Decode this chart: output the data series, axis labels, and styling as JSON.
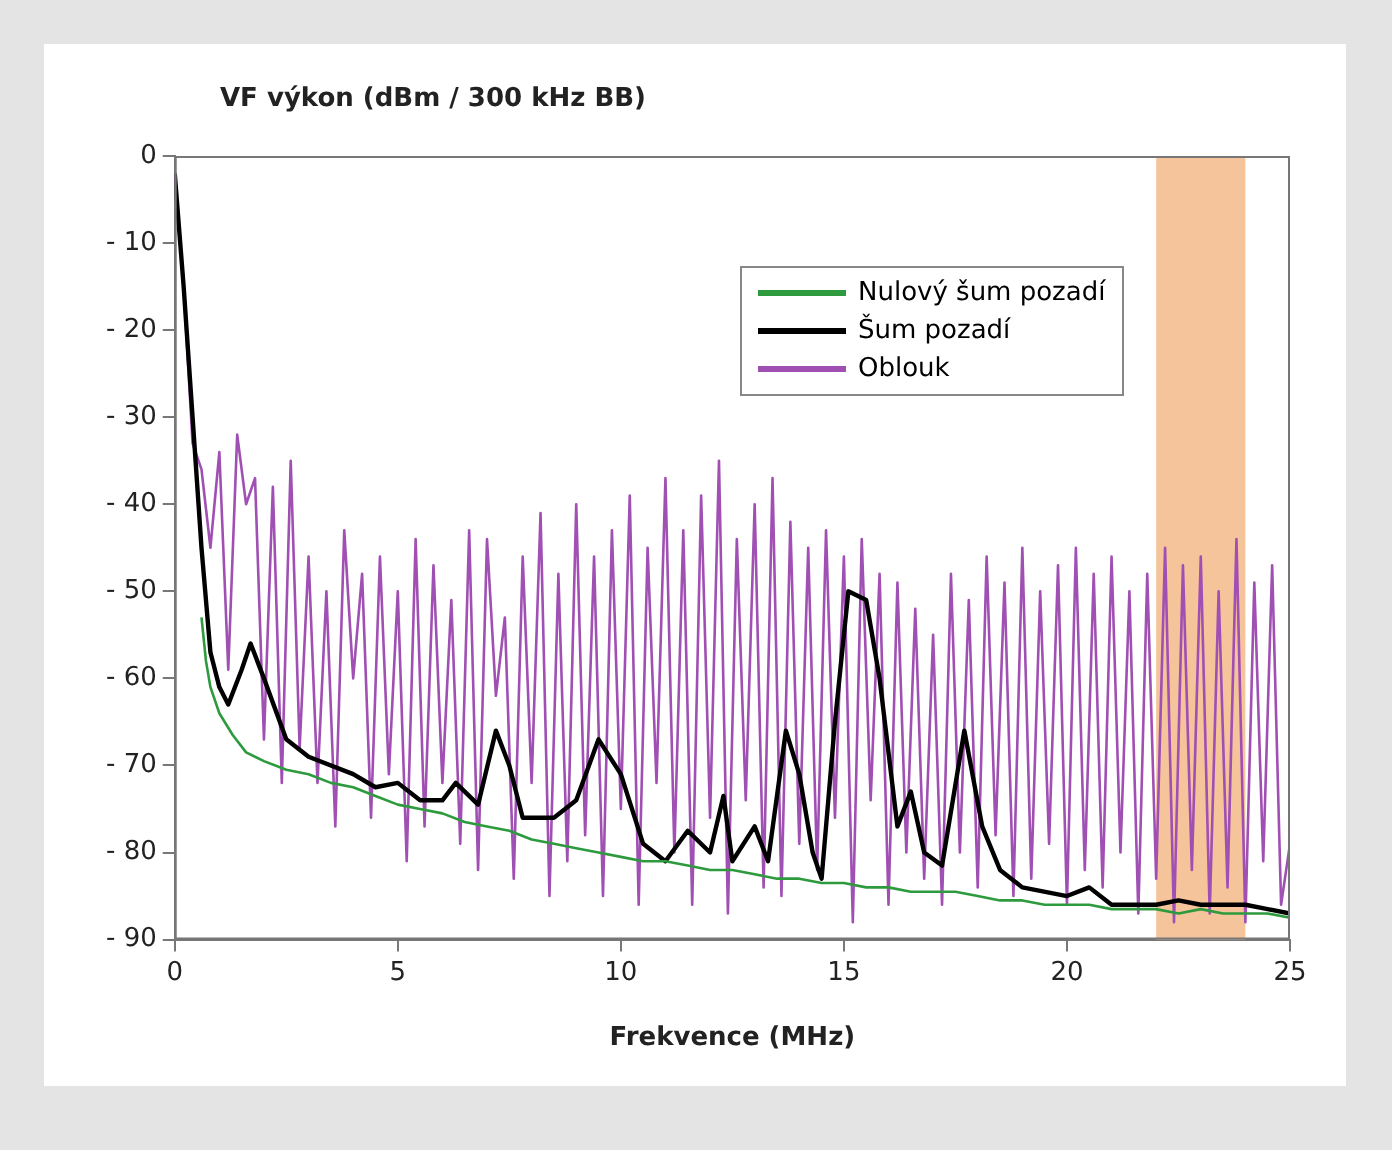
{
  "chart_data": {
    "type": "line",
    "ylabel": "VF výkon (dBm / 300 kHz BB)",
    "xlabel": "Frekvence (MHz)",
    "xlim": [
      0,
      25
    ],
    "xticks": [
      0,
      5,
      10,
      15,
      20,
      25
    ],
    "ylim": [
      -90,
      0
    ],
    "yticks": [
      {
        "value": -90,
        "label": "- 90"
      },
      {
        "value": -80,
        "label": "- 80"
      },
      {
        "value": -70,
        "label": "- 70"
      },
      {
        "value": -60,
        "label": "- 60"
      },
      {
        "value": -50,
        "label": "- 50"
      },
      {
        "value": -40,
        "label": "- 40"
      },
      {
        "value": -30,
        "label": "- 30"
      },
      {
        "value": -20,
        "label": "- 20"
      },
      {
        "value": -10,
        "label": "- 10"
      },
      0
    ],
    "grid": false,
    "legend": "top right",
    "marker": "none",
    "bands": [
      {
        "axis": "x",
        "from": 22,
        "to": 24,
        "color": "#f6c49a"
      }
    ],
    "series": [
      {
        "name": "Nulový šum pozadí",
        "color": "#2e9a3e",
        "x": [
          0.6,
          0.7,
          0.8,
          1,
          1.3,
          1.6,
          2,
          2.5,
          3,
          3.5,
          4,
          4.5,
          5,
          5.5,
          6,
          6.5,
          7,
          7.5,
          8,
          8.5,
          9,
          9.5,
          10,
          10.5,
          11,
          11.5,
          12,
          12.5,
          13,
          13.5,
          14,
          14.5,
          15,
          15.5,
          16,
          16.5,
          17,
          17.5,
          18,
          18.5,
          19,
          19.5,
          20,
          20.5,
          21,
          21.5,
          22,
          22.5,
          23,
          23.5,
          24,
          24.5,
          25
        ],
        "values": [
          -53,
          -58,
          -61,
          -64,
          -66.5,
          -68.5,
          -69.5,
          -70.5,
          -71,
          -72,
          -72.5,
          -73.5,
          -74.5,
          -75,
          -75.5,
          -76.5,
          -77,
          -77.5,
          -78.5,
          -79,
          -79.5,
          -80,
          -80.5,
          -81,
          -81,
          -81.5,
          -82,
          -82,
          -82.5,
          -83,
          -83,
          -83.5,
          -83.5,
          -84,
          -84,
          -84.5,
          -84.5,
          -84.5,
          -85,
          -85.5,
          -85.5,
          -86,
          -86,
          -86,
          -86.5,
          -86.5,
          -86.5,
          -87,
          -86.5,
          -87,
          -87,
          -87,
          -87.5
        ]
      },
      {
        "name": "Šum pozadí",
        "color": "#000000",
        "x": [
          0,
          0.2,
          0.4,
          0.6,
          0.8,
          1,
          1.2,
          1.5,
          1.7,
          2,
          2.5,
          3,
          4,
          4.5,
          5,
          5.5,
          6,
          6.3,
          6.8,
          7.2,
          7.5,
          7.8,
          8.5,
          9,
          9.5,
          10,
          10.5,
          11,
          11.5,
          12,
          12.3,
          12.5,
          13,
          13.3,
          13.7,
          14,
          14.3,
          14.5,
          14.8,
          15.1,
          15.5,
          15.8,
          16.2,
          16.5,
          16.8,
          17.2,
          17.7,
          18.1,
          18.5,
          19,
          20,
          20.5,
          21,
          22,
          22.5,
          23,
          24,
          24.5,
          25
        ],
        "values": [
          -2,
          -15,
          -30,
          -45,
          -57,
          -61,
          -63,
          -59,
          -56,
          -60,
          -67,
          -69,
          -71,
          -72.5,
          -72,
          -74,
          -74,
          -72,
          -74.5,
          -66,
          -70,
          -76,
          -76,
          -74,
          -67,
          -71,
          -79,
          -81,
          -77.5,
          -80,
          -73.5,
          -81,
          -77,
          -81,
          -66,
          -71,
          -80,
          -83,
          -65,
          -50,
          -51,
          -60,
          -77,
          -73,
          -80,
          -81.5,
          -66,
          -77,
          -82,
          -84,
          -85,
          -84,
          -86,
          -86,
          -85.5,
          -86,
          -86,
          -86.5,
          -87
        ]
      },
      {
        "name": "Oblouk",
        "color": "#a04fb3",
        "x": [
          0,
          0.2,
          0.4,
          0.6,
          0.8,
          1.0,
          1.2,
          1.4,
          1.6,
          1.8,
          2.0,
          2.2,
          2.4,
          2.6,
          2.8,
          3.0,
          3.2,
          3.4,
          3.6,
          3.8,
          4.0,
          4.2,
          4.4,
          4.6,
          4.8,
          5.0,
          5.2,
          5.4,
          5.6,
          5.8,
          6.0,
          6.2,
          6.4,
          6.6,
          6.8,
          7.0,
          7.2,
          7.4,
          7.6,
          7.8,
          8.0,
          8.2,
          8.4,
          8.6,
          8.8,
          9.0,
          9.2,
          9.4,
          9.6,
          9.8,
          10.0,
          10.2,
          10.4,
          10.6,
          10.8,
          11.0,
          11.2,
          11.4,
          11.6,
          11.8,
          12.0,
          12.2,
          12.4,
          12.6,
          12.8,
          13.0,
          13.2,
          13.4,
          13.6,
          13.8,
          14.0,
          14.2,
          14.4,
          14.6,
          14.8,
          15.0,
          15.2,
          15.4,
          15.6,
          15.8,
          16.0,
          16.2,
          16.4,
          16.6,
          16.8,
          17.0,
          17.2,
          17.4,
          17.6,
          17.8,
          18.0,
          18.2,
          18.4,
          18.6,
          18.8,
          19.0,
          19.2,
          19.4,
          19.6,
          19.8,
          20.0,
          20.2,
          20.4,
          20.6,
          20.8,
          21.0,
          21.2,
          21.4,
          21.6,
          21.8,
          22.0,
          22.2,
          22.4,
          22.6,
          22.8,
          23.0,
          23.2,
          23.4,
          23.6,
          23.8,
          24.0,
          24.2,
          24.4,
          24.6,
          24.8,
          25.0
        ],
        "values": [
          -2,
          -15,
          -33,
          -36,
          -45,
          -34,
          -59,
          -32,
          -40,
          -37,
          -67,
          -38,
          -72,
          -35,
          -68,
          -46,
          -72,
          -50,
          -77,
          -43,
          -60,
          -48,
          -76,
          -46,
          -71,
          -50,
          -81,
          -44,
          -77,
          -47,
          -72,
          -51,
          -79,
          -43,
          -82,
          -44,
          -62,
          -53,
          -83,
          -46,
          -72,
          -41,
          -85,
          -48,
          -81,
          -40,
          -78,
          -46,
          -85,
          -43,
          -75,
          -39,
          -86,
          -45,
          -72,
          -37,
          -80,
          -43,
          -86,
          -39,
          -76,
          -35,
          -87,
          -44,
          -74,
          -40,
          -84,
          -37,
          -85,
          -42,
          -79,
          -45,
          -82,
          -43,
          -76,
          -46,
          -88,
          -44,
          -74,
          -48,
          -86,
          -49,
          -80,
          -52,
          -83,
          -55,
          -86,
          -48,
          -80,
          -51,
          -84,
          -46,
          -78,
          -49,
          -85,
          -45,
          -83,
          -50,
          -79,
          -47,
          -86,
          -45,
          -82,
          -48,
          -84,
          -46,
          -80,
          -50,
          -87,
          -48,
          -83,
          -45,
          -88,
          -47,
          -82,
          -46,
          -87,
          -50,
          -84,
          -44,
          -88,
          -49,
          -81,
          -47,
          -86,
          -79
        ]
      }
    ]
  }
}
